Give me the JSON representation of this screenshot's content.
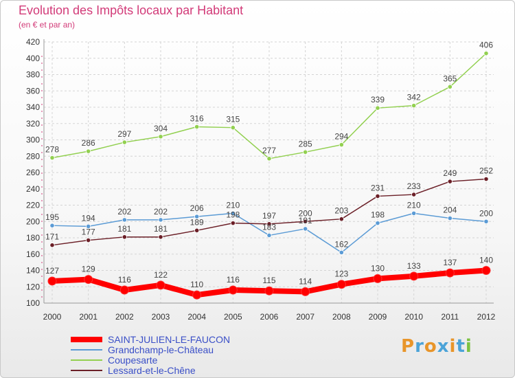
{
  "title": "Evolution des Impôts locaux par Habitant",
  "subtitle": "(en € et par an)",
  "logo": {
    "text": "Proxiti",
    "colors": [
      "#e8952a",
      "#4ba3d8",
      "#e8952a",
      "#4ba3d8",
      "#e8952a",
      "#4ba3d8",
      "#7cc242"
    ]
  },
  "chart_data": {
    "type": "line",
    "x": [
      "2000",
      "2001",
      "2002",
      "2003",
      "2004",
      "2005",
      "2006",
      "2007",
      "2008",
      "2009",
      "2010",
      "2011",
      "2012"
    ],
    "ylim": [
      100,
      420
    ],
    "yticks": [
      100,
      120,
      140,
      160,
      180,
      200,
      220,
      240,
      260,
      280,
      300,
      320,
      340,
      360,
      380,
      400,
      420
    ],
    "grid": true,
    "legend_position": "bottom-left",
    "series": [
      {
        "name": "SAINT-JULIEN-LE-FAUCON",
        "color": "#ff0000",
        "values": [
          127,
          129,
          116,
          122,
          110,
          116,
          115,
          114,
          123,
          130,
          133,
          137,
          140
        ]
      },
      {
        "name": "Grandchamp-le-Château",
        "color": "#5b9bd5",
        "values": [
          195,
          194,
          202,
          202,
          206,
          210,
          183,
          191,
          162,
          198,
          210,
          204,
          200
        ]
      },
      {
        "name": "Coupesarte",
        "color": "#92d050",
        "values": [
          278,
          286,
          297,
          304,
          316,
          315,
          277,
          285,
          294,
          339,
          342,
          365,
          406
        ]
      },
      {
        "name": "Lessard-et-le-Chêne",
        "color": "#6b1f27",
        "values": [
          171,
          177,
          181,
          181,
          189,
          198,
          197,
          200,
          203,
          231,
          233,
          249,
          252
        ]
      }
    ]
  }
}
